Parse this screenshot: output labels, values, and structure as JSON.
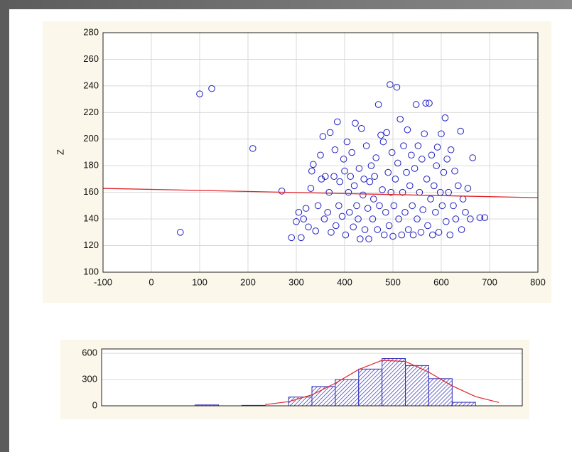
{
  "chart_data": [
    {
      "type": "scatter",
      "ylabel": "Z",
      "color": "#1f1fc0",
      "xlim": [
        -100,
        800
      ],
      "xticks": [
        -100,
        0,
        100,
        200,
        300,
        400,
        500,
        600,
        700,
        800
      ],
      "ylim": [
        100,
        280
      ],
      "yticks": [
        100,
        120,
        140,
        160,
        180,
        200,
        220,
        240,
        260,
        280
      ],
      "grid": true,
      "x": [
        60,
        100,
        125,
        210,
        270,
        290,
        300,
        305,
        310,
        315,
        320,
        325,
        330,
        332,
        335,
        340,
        345,
        350,
        352,
        355,
        358,
        360,
        365,
        368,
        370,
        372,
        378,
        380,
        382,
        385,
        388,
        390,
        395,
        398,
        400,
        402,
        405,
        408,
        410,
        412,
        415,
        418,
        420,
        422,
        425,
        428,
        430,
        432,
        435,
        438,
        440,
        442,
        445,
        448,
        450,
        452,
        455,
        458,
        460,
        462,
        465,
        468,
        470,
        472,
        475,
        478,
        480,
        482,
        485,
        487,
        490,
        492,
        494,
        496,
        498,
        500,
        502,
        505,
        508,
        510,
        512,
        515,
        518,
        520,
        522,
        525,
        528,
        530,
        532,
        535,
        538,
        540,
        542,
        545,
        548,
        550,
        552,
        555,
        558,
        560,
        562,
        565,
        568,
        570,
        572,
        575,
        578,
        580,
        582,
        585,
        588,
        590,
        592,
        595,
        598,
        600,
        602,
        605,
        608,
        610,
        612,
        615,
        618,
        620,
        625,
        628,
        630,
        635,
        640,
        642,
        645,
        650,
        655,
        660,
        665,
        680,
        690
      ],
      "values": [
        130,
        234,
        238,
        193,
        161,
        126,
        138,
        145,
        126,
        140,
        148,
        134,
        163,
        176,
        181,
        131,
        150,
        188,
        170,
        202,
        140,
        172,
        145,
        160,
        205,
        130,
        172,
        192,
        135,
        213,
        150,
        168,
        142,
        185,
        176,
        128,
        198,
        160,
        145,
        172,
        190,
        134,
        165,
        212,
        150,
        140,
        178,
        125,
        208,
        158,
        170,
        132,
        195,
        148,
        125,
        168,
        180,
        140,
        155,
        172,
        186,
        132,
        226,
        150,
        203,
        162,
        198,
        128,
        145,
        205,
        175,
        135,
        241,
        160,
        190,
        127,
        150,
        170,
        239,
        182,
        140,
        215,
        128,
        160,
        195,
        145,
        175,
        207,
        132,
        165,
        188,
        150,
        128,
        178,
        226,
        140,
        195,
        160,
        130,
        185,
        147,
        204,
        227,
        170,
        135,
        227,
        155,
        188,
        128,
        165,
        145,
        180,
        194,
        130,
        160,
        204,
        150,
        175,
        216,
        138,
        185,
        160,
        128,
        192,
        150,
        176,
        140,
        165,
        206,
        132,
        155,
        145,
        163,
        140,
        186,
        141,
        141
      ],
      "fit_line": {
        "x": [
          -100,
          800
        ],
        "values": [
          163,
          156
        ],
        "color": "#e2232a"
      }
    },
    {
      "type": "histogram",
      "color": "#2b2bb8",
      "xlim": [
        -100,
        800
      ],
      "ylim": [
        0,
        650
      ],
      "yticks": [
        0,
        300,
        600
      ],
      "grid": true,
      "bins": [
        100,
        150,
        200,
        250,
        300,
        350,
        400,
        450,
        500,
        550,
        600,
        650,
        700
      ],
      "values": [
        10,
        0,
        5,
        0,
        100,
        220,
        300,
        420,
        540,
        460,
        310,
        40
      ],
      "curve": {
        "x": [
          250,
          300,
          350,
          400,
          450,
          500,
          550,
          600,
          650,
          700,
          750
        ],
        "values": [
          14,
          47,
          125,
          258,
          415,
          520,
          507,
          385,
          228,
          105,
          38
        ],
        "color": "#e2232a"
      }
    }
  ]
}
